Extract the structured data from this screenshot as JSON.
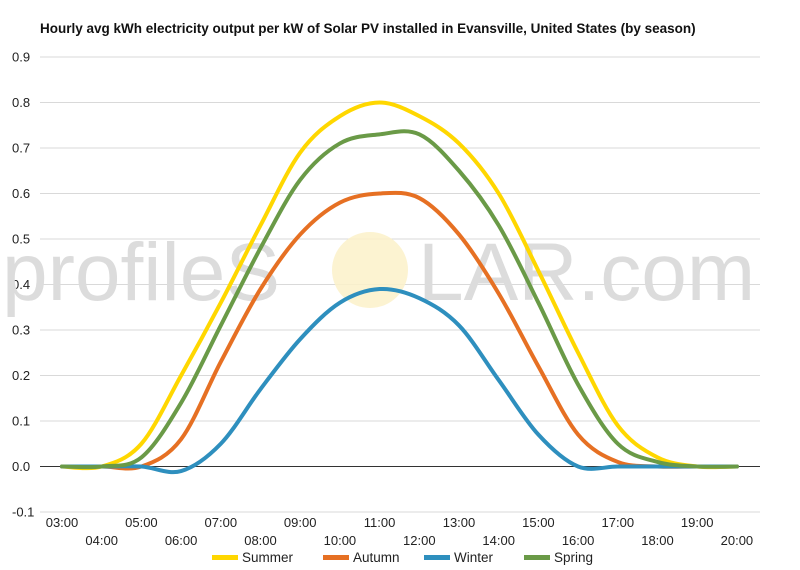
{
  "chart_data": {
    "type": "line",
    "title": "Hourly avg kWh electricity output per kW of Solar PV installed in Evansville, United States (by season)",
    "xlabel": "",
    "ylabel": "",
    "x": [
      "03:00",
      "04:00",
      "05:00",
      "06:00",
      "07:00",
      "08:00",
      "09:00",
      "10:00",
      "11:00",
      "12:00",
      "13:00",
      "14:00",
      "15:00",
      "16:00",
      "17:00",
      "18:00",
      "19:00",
      "20:00"
    ],
    "ylim": [
      -0.1,
      0.9
    ],
    "yticks": [
      "0.9",
      "0.8",
      "0.7",
      "0.6",
      "0.5",
      "0.4",
      "0.3",
      "0.2",
      "0.1",
      "0.0",
      "-0.1"
    ],
    "grid": true,
    "legend_position": "bottom",
    "series": [
      {
        "name": "Summer",
        "color": "#FFD700",
        "values": [
          0.0,
          0.0,
          0.05,
          0.2,
          0.36,
          0.53,
          0.69,
          0.77,
          0.8,
          0.77,
          0.71,
          0.6,
          0.43,
          0.25,
          0.09,
          0.02,
          0.0,
          0.0
        ]
      },
      {
        "name": "Autumn",
        "color": "#E67023",
        "values": [
          0.0,
          0.0,
          0.0,
          0.06,
          0.23,
          0.39,
          0.51,
          0.58,
          0.6,
          0.59,
          0.51,
          0.38,
          0.22,
          0.07,
          0.01,
          0.0,
          0.0,
          0.0
        ]
      },
      {
        "name": "Winter",
        "color": "#2E8FBE",
        "values": [
          0.0,
          0.0,
          0.0,
          -0.01,
          0.05,
          0.17,
          0.28,
          0.36,
          0.39,
          0.37,
          0.31,
          0.19,
          0.07,
          0.0,
          0.0,
          0.0,
          0.0,
          0.0
        ]
      },
      {
        "name": "Spring",
        "color": "#6A9A47",
        "values": [
          0.0,
          0.0,
          0.02,
          0.14,
          0.31,
          0.48,
          0.63,
          0.71,
          0.73,
          0.73,
          0.65,
          0.53,
          0.36,
          0.18,
          0.05,
          0.01,
          0.0,
          0.0
        ]
      }
    ]
  },
  "watermark": {
    "left": "profileS",
    "right": "LAR.com"
  }
}
